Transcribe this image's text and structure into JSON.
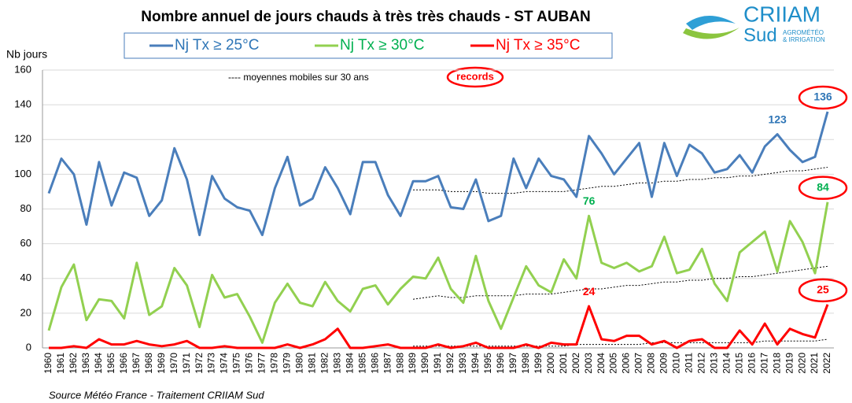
{
  "chart_data": {
    "type": "line",
    "title": "Nombre annuel de jours chauds à très très chauds - ST AUBAN",
    "y_label": "Nb jours",
    "source": "Source Météo France - Traitement CRIIAM Sud",
    "trend_note": "---- moyennes mobiles sur 30 ans",
    "records_note": "records",
    "logo": {
      "name": "CRIIAM",
      "sub": "Sud",
      "tagline": [
        "AGROMÉTÉO",
        "& IRRIGATION"
      ]
    },
    "categories": [
      "1960",
      "1961",
      "1962",
      "1963",
      "1964",
      "1965",
      "1966",
      "1967",
      "1968",
      "1969",
      "1970",
      "1971",
      "1972",
      "1973",
      "1974",
      "1975",
      "1976",
      "1977",
      "1978",
      "1979",
      "1980",
      "1981",
      "1982",
      "1983",
      "1984",
      "1985",
      "1986",
      "1987",
      "1988",
      "1989",
      "1990",
      "1991",
      "1992",
      "1993",
      "1994",
      "1995",
      "1996",
      "1997",
      "1998",
      "1999",
      "2000",
      "2001",
      "2002",
      "2003",
      "2004",
      "2005",
      "2006",
      "2007",
      "2008",
      "2009",
      "2010",
      "2011",
      "2012",
      "2013",
      "2014",
      "2015",
      "2016",
      "2017",
      "2018",
      "2019",
      "2020",
      "2021",
      "2022"
    ],
    "ylim": [
      0,
      160
    ],
    "yticks": [
      0,
      20,
      40,
      60,
      80,
      100,
      120,
      140,
      160
    ],
    "grid": true,
    "series": [
      {
        "name": "Nj Tx ≥ 25°C",
        "color": "#4a7ebb",
        "label_color": "#2e75b6",
        "values": [
          89,
          109,
          100,
          71,
          107,
          82,
          101,
          98,
          76,
          85,
          115,
          97,
          65,
          99,
          86,
          81,
          79,
          65,
          92,
          110,
          82,
          86,
          104,
          92,
          77,
          107,
          107,
          88,
          76,
          96,
          96,
          99,
          81,
          80,
          97,
          73,
          76,
          109,
          92,
          109,
          99,
          97,
          87,
          122,
          112,
          100,
          109,
          118,
          87,
          118,
          99,
          117,
          112,
          101,
          103,
          111,
          101,
          116,
          123,
          114,
          107,
          110,
          136
        ],
        "labeled_years": [
          "2018",
          "2022"
        ],
        "circled_years": [
          "2022"
        ]
      },
      {
        "name": "Nj Tx ≥ 30°C",
        "color": "#92d050",
        "label_color": "#00b050",
        "values": [
          10,
          35,
          48,
          16,
          28,
          27,
          17,
          49,
          19,
          24,
          46,
          36,
          12,
          42,
          29,
          31,
          18,
          3,
          26,
          37,
          26,
          24,
          38,
          27,
          21,
          34,
          36,
          25,
          34,
          41,
          40,
          52,
          34,
          26,
          53,
          27,
          11,
          29,
          47,
          36,
          32,
          51,
          40,
          76,
          49,
          46,
          49,
          44,
          47,
          64,
          43,
          45,
          57,
          37,
          27,
          55,
          61,
          67,
          44,
          73,
          61,
          43,
          84
        ],
        "labeled_years": [
          "2003",
          "2022"
        ],
        "circled_years": [
          "2022"
        ]
      },
      {
        "name": "Nj Tx ≥ 35°C",
        "color": "#ff0000",
        "label_color": "#ff0000",
        "values": [
          0,
          0,
          1,
          0,
          5,
          2,
          2,
          4,
          2,
          1,
          2,
          4,
          0,
          0,
          1,
          0,
          0,
          0,
          0,
          2,
          0,
          2,
          5,
          11,
          0,
          0,
          1,
          2,
          0,
          0,
          0,
          2,
          0,
          1,
          3,
          0,
          0,
          0,
          2,
          0,
          3,
          2,
          2,
          24,
          5,
          4,
          7,
          7,
          2,
          4,
          0,
          4,
          5,
          0,
          0,
          10,
          2,
          14,
          2,
          11,
          8,
          6,
          25
        ],
        "labeled_years": [
          "2003",
          "2022"
        ],
        "circled_years": [
          "2022"
        ]
      }
    ],
    "trend_lines": [
      {
        "color": "#000000",
        "values": [
          null,
          null,
          null,
          null,
          null,
          null,
          null,
          null,
          null,
          null,
          null,
          null,
          null,
          null,
          null,
          null,
          null,
          null,
          null,
          null,
          null,
          null,
          null,
          null,
          null,
          null,
          null,
          null,
          null,
          91,
          91,
          91,
          90,
          90,
          90,
          89,
          89,
          89,
          90,
          90,
          90,
          90,
          91,
          92,
          93,
          93,
          94,
          95,
          95,
          96,
          96,
          97,
          97,
          98,
          98,
          99,
          99,
          100,
          101,
          102,
          102,
          103,
          104
        ]
      },
      {
        "color": "#000000",
        "values": [
          null,
          null,
          null,
          null,
          null,
          null,
          null,
          null,
          null,
          null,
          null,
          null,
          null,
          null,
          null,
          null,
          null,
          null,
          null,
          null,
          null,
          null,
          null,
          null,
          null,
          null,
          null,
          null,
          null,
          28,
          29,
          30,
          29,
          29,
          30,
          30,
          30,
          30,
          31,
          31,
          31,
          32,
          33,
          34,
          34,
          35,
          36,
          36,
          37,
          38,
          38,
          39,
          39,
          40,
          40,
          41,
          41,
          42,
          43,
          44,
          45,
          46,
          47
        ]
      },
      {
        "color": "#000000",
        "values": [
          null,
          null,
          null,
          null,
          null,
          null,
          null,
          null,
          null,
          null,
          null,
          null,
          null,
          null,
          null,
          null,
          null,
          null,
          null,
          null,
          null,
          null,
          null,
          null,
          null,
          null,
          null,
          null,
          null,
          1,
          1,
          1,
          1,
          1,
          1,
          1,
          1,
          1,
          1,
          1,
          1,
          1,
          2,
          2,
          2,
          2,
          2,
          2,
          3,
          3,
          3,
          3,
          3,
          3,
          3,
          3,
          3,
          4,
          4,
          4,
          4,
          4,
          5
        ]
      }
    ]
  }
}
